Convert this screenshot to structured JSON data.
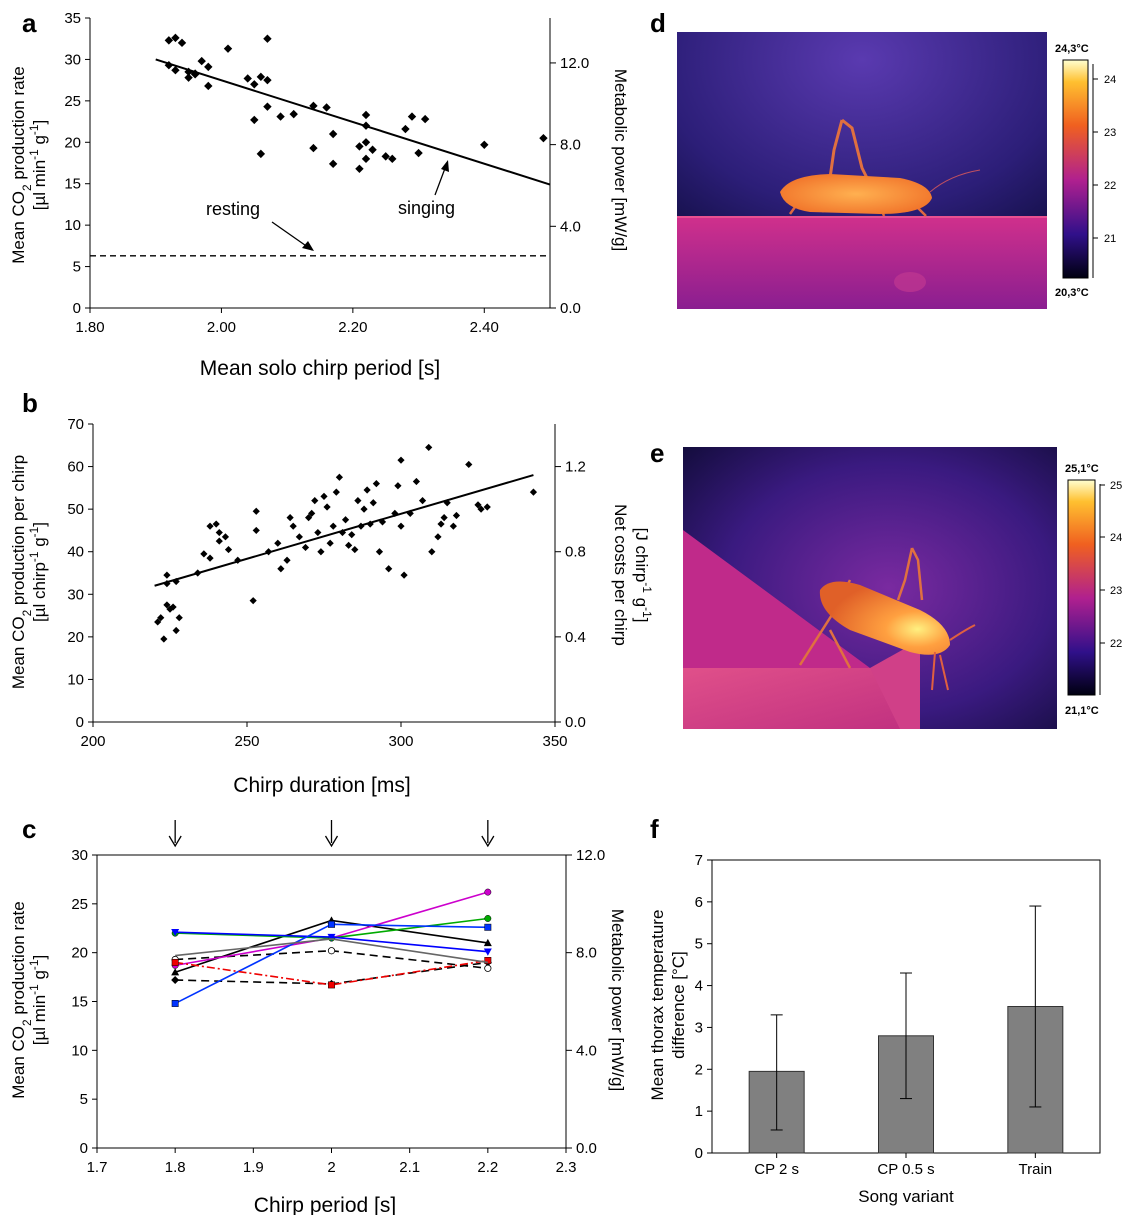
{
  "chart_data": [
    {
      "panel": "a",
      "type": "scatter",
      "xlabel": "Mean solo chirp period [s]",
      "ylabel": [
        "Mean CO2 production rate",
        "[µl min-1 g-1]"
      ],
      "y2label": "Metabolic power [mW/g]",
      "xlim": [
        1.8,
        2.5
      ],
      "ylim": [
        0,
        35
      ],
      "y2lim": [
        0,
        14.2
      ],
      "xticks": [
        "1.80",
        "2.00",
        "2.20",
        "2.40"
      ],
      "yticks": [
        "0",
        "5",
        "10",
        "15",
        "20",
        "25",
        "30",
        "35"
      ],
      "y2ticks": [
        "0.0",
        "4.0",
        "8.0",
        "12.0"
      ],
      "points": [
        [
          1.92,
          32.3
        ],
        [
          1.93,
          32.6
        ],
        [
          1.94,
          32.0
        ],
        [
          1.92,
          29.3
        ],
        [
          1.95,
          27.8
        ],
        [
          1.95,
          28.5
        ],
        [
          1.96,
          28.2
        ],
        [
          1.97,
          29.8
        ],
        [
          1.98,
          29.1
        ],
        [
          1.98,
          26.8
        ],
        [
          1.96,
          28.3
        ],
        [
          1.93,
          28.7
        ],
        [
          2.01,
          31.3
        ],
        [
          2.04,
          27.7
        ],
        [
          2.05,
          27.0
        ],
        [
          2.05,
          22.7
        ],
        [
          2.06,
          27.9
        ],
        [
          2.07,
          27.5
        ],
        [
          2.06,
          18.6
        ],
        [
          2.07,
          32.5
        ],
        [
          2.07,
          24.3
        ],
        [
          2.09,
          23.1
        ],
        [
          2.11,
          23.4
        ],
        [
          2.14,
          24.4
        ],
        [
          2.16,
          24.2
        ],
        [
          2.14,
          19.3
        ],
        [
          2.17,
          17.4
        ],
        [
          2.17,
          21.0
        ],
        [
          2.21,
          16.8
        ],
        [
          2.21,
          19.5
        ],
        [
          2.22,
          20.0
        ],
        [
          2.22,
          18.0
        ],
        [
          2.22,
          23.3
        ],
        [
          2.22,
          22.0
        ],
        [
          2.23,
          19.1
        ],
        [
          2.25,
          18.3
        ],
        [
          2.26,
          18.0
        ],
        [
          2.28,
          21.6
        ],
        [
          2.29,
          23.1
        ],
        [
          2.3,
          18.7
        ],
        [
          2.31,
          22.8
        ],
        [
          2.4,
          19.7
        ],
        [
          2.49,
          20.5
        ]
      ],
      "fit_line": {
        "x": [
          1.9,
          2.5
        ],
        "y": [
          30.0,
          14.9
        ]
      },
      "resting_line": {
        "y": 6.3
      },
      "annotations": [
        "resting",
        "singing"
      ]
    },
    {
      "panel": "b",
      "type": "scatter",
      "xlabel": "Chirp duration [ms]",
      "ylabel": [
        "Mean CO2 production per chirp",
        "[µl chirp-1 g-1]"
      ],
      "y2label": [
        "Net costs per chirp",
        "[J chirp-1 g-1]"
      ],
      "xlim": [
        200,
        350
      ],
      "ylim": [
        0,
        70
      ],
      "y2lim": [
        0,
        1.4
      ],
      "xticks": [
        "200",
        "250",
        "300",
        "350"
      ],
      "yticks": [
        "0",
        "10",
        "20",
        "30",
        "40",
        "50",
        "60",
        "70"
      ],
      "y2ticks": [
        "0.0",
        "0.4",
        "0.8",
        "1.2"
      ],
      "points": [
        [
          221,
          23.5
        ],
        [
          222,
          24.5
        ],
        [
          223,
          19.5
        ],
        [
          224,
          27.5
        ],
        [
          225,
          26.5
        ],
        [
          226,
          27.0
        ],
        [
          227,
          21.5
        ],
        [
          228,
          24.5
        ],
        [
          224,
          32.5
        ],
        [
          224,
          34.5
        ],
        [
          227,
          33.0
        ],
        [
          234,
          35.0
        ],
        [
          236,
          39.5
        ],
        [
          238,
          46.0
        ],
        [
          238,
          38.5
        ],
        [
          240,
          46.5
        ],
        [
          241,
          44.5
        ],
        [
          241,
          42.5
        ],
        [
          243,
          43.5
        ],
        [
          244,
          40.5
        ],
        [
          247,
          38.0
        ],
        [
          252,
          28.5
        ],
        [
          253,
          49.5
        ],
        [
          253,
          45.0
        ],
        [
          257,
          40.0
        ],
        [
          260,
          42.0
        ],
        [
          261,
          36.0
        ],
        [
          263,
          38.0
        ],
        [
          264,
          48.0
        ],
        [
          265,
          46.0
        ],
        [
          267,
          43.5
        ],
        [
          269,
          41.0
        ],
        [
          270,
          48.0
        ],
        [
          271,
          49.0
        ],
        [
          272,
          52.0
        ],
        [
          273,
          44.5
        ],
        [
          274,
          40.0
        ],
        [
          275,
          53.0
        ],
        [
          276,
          50.5
        ],
        [
          277,
          42.0
        ],
        [
          278,
          46.0
        ],
        [
          279,
          54.0
        ],
        [
          280,
          57.5
        ],
        [
          281,
          44.5
        ],
        [
          282,
          47.5
        ],
        [
          283,
          41.5
        ],
        [
          284,
          44.0
        ],
        [
          285,
          40.5
        ],
        [
          286,
          52.0
        ],
        [
          287,
          46.0
        ],
        [
          288,
          50.0
        ],
        [
          289,
          54.5
        ],
        [
          290,
          46.5
        ],
        [
          291,
          51.5
        ],
        [
          292,
          56.0
        ],
        [
          293,
          40.0
        ],
        [
          294,
          47.0
        ],
        [
          296,
          36.0
        ],
        [
          298,
          49.0
        ],
        [
          299,
          55.5
        ],
        [
          300,
          61.5
        ],
        [
          300,
          46.0
        ],
        [
          301,
          34.5
        ],
        [
          303,
          49.0
        ],
        [
          305,
          56.5
        ],
        [
          307,
          52.0
        ],
        [
          309,
          64.5
        ],
        [
          310,
          40.0
        ],
        [
          312,
          43.5
        ],
        [
          313,
          46.5
        ],
        [
          314,
          48.0
        ],
        [
          315,
          51.5
        ],
        [
          317,
          46.0
        ],
        [
          318,
          48.5
        ],
        [
          322,
          60.5
        ],
        [
          325,
          51.0
        ],
        [
          326,
          50.0
        ],
        [
          328,
          50.5
        ],
        [
          343,
          54.0
        ]
      ],
      "fit_line": {
        "x": [
          220,
          343
        ],
        "y": [
          32.0,
          58.0
        ]
      }
    },
    {
      "panel": "c",
      "type": "line",
      "xlabel": "Chirp period [s]",
      "ylabel": [
        "Mean CO2 production rate",
        "[µl min-1 g-1]"
      ],
      "y2label": "Metabolic power [mW/g]",
      "xlim": [
        1.7,
        2.3
      ],
      "ylim": [
        0,
        30
      ],
      "y2lim": [
        0,
        12
      ],
      "xticks": [
        "1.7",
        "1.8",
        "1.9",
        "2",
        "2.1",
        "2.2",
        "2.3"
      ],
      "yticks": [
        "0",
        "5",
        "10",
        "15",
        "20",
        "25",
        "30"
      ],
      "y2ticks": [
        "0.0",
        "4.0",
        "8.0",
        "12.0"
      ],
      "arrows_at": [
        1.8,
        2.0,
        2.2
      ],
      "x": [
        1.8,
        2.0,
        2.2
      ],
      "series": [
        {
          "values": [
            18.0,
            23.3,
            21.0
          ],
          "color": "#000000",
          "dash": "solid",
          "marker": "triangle"
        },
        {
          "values": [
            17.2,
            16.8,
            19.0
          ],
          "color": "#000000",
          "dash": "dashed",
          "marker": "diamond"
        },
        {
          "values": [
            19.3,
            20.2,
            18.4
          ],
          "color": "#000000",
          "dash": "dashed",
          "marker": "circle-open"
        },
        {
          "values": [
            18.7,
            21.5,
            26.2
          ],
          "color": "#cc00cc",
          "dash": "solid",
          "marker": "circle"
        },
        {
          "values": [
            22.0,
            21.5,
            23.5
          ],
          "color": "#00aa00",
          "dash": "solid",
          "marker": "circle"
        },
        {
          "values": [
            22.1,
            21.6,
            20.1
          ],
          "color": "#0000ff",
          "dash": "solid",
          "marker": "triangle-down"
        },
        {
          "values": [
            14.8,
            22.9,
            22.6
          ],
          "color": "#0033ff",
          "dash": "solid",
          "marker": "square"
        },
        {
          "values": [
            19.0,
            16.7,
            19.2
          ],
          "color": "#ee0000",
          "dash": "dashdot",
          "marker": "square"
        },
        {
          "values": [
            19.7,
            21.4,
            19.0
          ],
          "color": "#666666",
          "dash": "solid",
          "marker": "none"
        }
      ]
    },
    {
      "panel": "f",
      "type": "bar",
      "xlabel": "Song variant",
      "ylabel": [
        "Mean thorax temperature",
        "difference [°C]"
      ],
      "ylim": [
        0,
        7
      ],
      "yticks": [
        "0",
        "1",
        "2",
        "3",
        "4",
        "5",
        "6",
        "7"
      ],
      "categories": [
        "CP 2 s",
        "CP 0.5 s",
        "Train"
      ],
      "values": [
        1.95,
        2.8,
        3.5
      ],
      "error_low": [
        0.55,
        1.3,
        1.1
      ],
      "error_high": [
        3.3,
        4.3,
        5.9
      ],
      "bar_color": "#808080"
    }
  ],
  "thermal": [
    {
      "panel": "d",
      "max_label": "24,3°C",
      "min_label": "20,3°C",
      "ticks": [
        "24",
        "23",
        "22",
        "21"
      ]
    },
    {
      "panel": "e",
      "max_label": "25,1°C",
      "min_label": "21,1°C",
      "ticks": [
        "25",
        "24",
        "23",
        "22"
      ]
    }
  ],
  "colors": {
    "bar": "#808080",
    "thermal_low": "#0a0830",
    "thermal_mid": "#b0208f",
    "thermal_high": "#ffd040"
  }
}
